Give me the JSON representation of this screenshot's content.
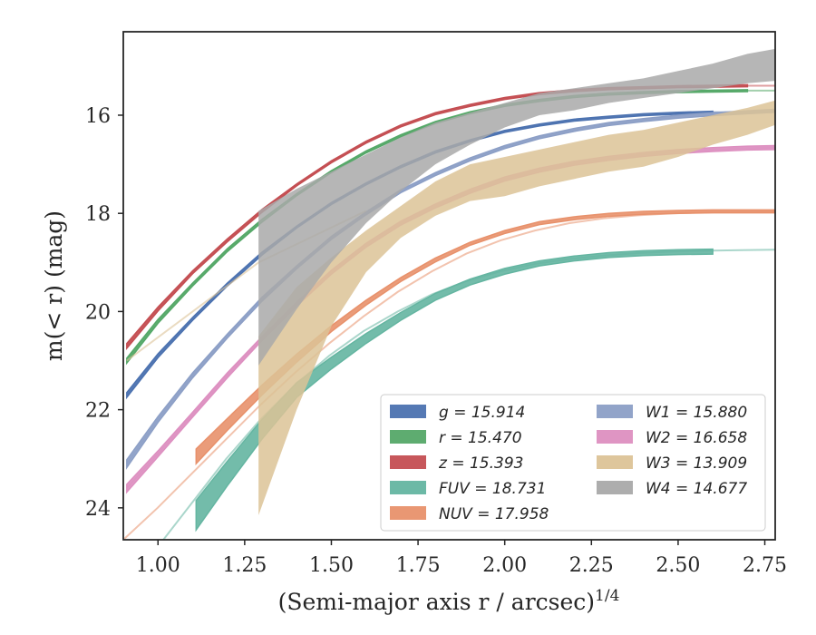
{
  "chart_data": {
    "type": "line",
    "title": "",
    "xlabel": "(Semi-major axis r / arcsec)",
    "xlabel_superscript": "1/4",
    "ylabel": "m(< r) (mag)",
    "xlim": [
      0.9,
      2.78
    ],
    "ylim": [
      24.65,
      14.3
    ],
    "y_inverted": true,
    "grid": false,
    "legend_position": "lower-right",
    "x_ticks": [
      "1.00",
      "1.25",
      "1.50",
      "1.75",
      "2.00",
      "2.25",
      "2.50",
      "2.75"
    ],
    "y_ticks": [
      "16",
      "18",
      "20",
      "22",
      "24"
    ],
    "series": [
      {
        "name": "g = 15.914",
        "color": "#4c72b0",
        "x": [
          0.91,
          1.0,
          1.1,
          1.2,
          1.3,
          1.4,
          1.5,
          1.6,
          1.7,
          1.8,
          1.9,
          2.0,
          2.1,
          2.2,
          2.3,
          2.4,
          2.5,
          2.6
        ],
        "y": [
          21.7,
          20.9,
          20.15,
          19.45,
          18.82,
          18.28,
          17.8,
          17.4,
          17.05,
          16.75,
          16.52,
          16.33,
          16.2,
          16.1,
          16.04,
          15.99,
          15.96,
          15.94
        ],
        "band": [
          0.05,
          0.04,
          0.03,
          0.03,
          0.03,
          0.02,
          0.02,
          0.02,
          0.02,
          0.02,
          0.02,
          0.02,
          0.02,
          0.02,
          0.02,
          0.02,
          0.02,
          0.02
        ],
        "model_to": 2.78
      },
      {
        "name": "r = 15.470",
        "color": "#55a868",
        "x": [
          0.91,
          1.0,
          1.1,
          1.2,
          1.3,
          1.4,
          1.5,
          1.6,
          1.7,
          1.8,
          1.9,
          2.0,
          2.1,
          2.2,
          2.3,
          2.4,
          2.5,
          2.6,
          2.7
        ],
        "y": [
          21.0,
          20.2,
          19.45,
          18.75,
          18.15,
          17.62,
          17.15,
          16.75,
          16.42,
          16.15,
          15.95,
          15.8,
          15.7,
          15.62,
          15.57,
          15.54,
          15.52,
          15.51,
          15.5
        ],
        "band": [
          0.05,
          0.04,
          0.03,
          0.03,
          0.03,
          0.02,
          0.02,
          0.02,
          0.02,
          0.02,
          0.02,
          0.02,
          0.02,
          0.02,
          0.02,
          0.02,
          0.02,
          0.02,
          0.02
        ],
        "model_to": 2.78
      },
      {
        "name": "z = 15.393",
        "color": "#c44e52",
        "x": [
          0.91,
          1.0,
          1.1,
          1.2,
          1.3,
          1.4,
          1.5,
          1.6,
          1.7,
          1.8,
          1.9,
          2.0,
          2.1,
          2.2,
          2.3,
          2.4,
          2.5,
          2.6,
          2.7
        ],
        "y": [
          20.7,
          19.95,
          19.2,
          18.55,
          17.95,
          17.42,
          16.95,
          16.55,
          16.22,
          15.97,
          15.8,
          15.66,
          15.56,
          15.5,
          15.46,
          15.44,
          15.42,
          15.41,
          15.4
        ],
        "band": [
          0.05,
          0.04,
          0.03,
          0.03,
          0.03,
          0.02,
          0.02,
          0.02,
          0.02,
          0.02,
          0.02,
          0.02,
          0.02,
          0.02,
          0.02,
          0.02,
          0.02,
          0.02,
          0.02
        ],
        "model_to": 2.78
      },
      {
        "name": "FUV = 18.731",
        "color": "#64b5a1",
        "x": [
          1.11,
          1.2,
          1.3,
          1.4,
          1.5,
          1.6,
          1.7,
          1.8,
          1.9,
          2.0,
          2.1,
          2.2,
          2.3,
          2.4,
          2.5,
          2.6
        ],
        "y": [
          24.15,
          23.3,
          22.4,
          21.6,
          21.05,
          20.55,
          20.1,
          19.7,
          19.4,
          19.18,
          19.02,
          18.92,
          18.85,
          18.81,
          18.79,
          18.78
        ],
        "band": [
          0.3,
          0.25,
          0.2,
          0.15,
          0.12,
          0.1,
          0.08,
          0.07,
          0.06,
          0.06,
          0.05,
          0.05,
          0.05,
          0.05,
          0.05,
          0.05
        ],
        "model_to": 2.78,
        "model_from": 0.9,
        "model_y": [
          25.6,
          24.8,
          23.9,
          23.0,
          22.2,
          21.5,
          20.9,
          20.4,
          20.0,
          19.65,
          19.38,
          19.18,
          19.03,
          18.93,
          18.86,
          18.81,
          18.78,
          18.76,
          18.75,
          18.74
        ]
      },
      {
        "name": "NUV = 17.958",
        "color": "#e8916b",
        "x": [
          1.11,
          1.2,
          1.3,
          1.4,
          1.5,
          1.6,
          1.7,
          1.8,
          1.9,
          2.0,
          2.1,
          2.2,
          2.3,
          2.4,
          2.5,
          2.6,
          2.7,
          2.78
        ],
        "y": [
          22.95,
          22.3,
          21.6,
          20.95,
          20.35,
          19.82,
          19.35,
          18.95,
          18.62,
          18.38,
          18.2,
          18.1,
          18.03,
          17.99,
          17.97,
          17.96,
          17.96,
          17.96
        ],
        "band": [
          0.15,
          0.12,
          0.1,
          0.08,
          0.06,
          0.05,
          0.04,
          0.04,
          0.03,
          0.03,
          0.03,
          0.03,
          0.03,
          0.03,
          0.03,
          0.03,
          0.03,
          0.03
        ],
        "model_to": 2.78,
        "model_from": 0.9,
        "model_y": [
          24.65,
          24.0,
          23.3,
          22.6,
          21.9,
          21.25,
          20.65,
          20.1,
          19.6,
          19.18,
          18.82,
          18.55,
          18.35,
          18.2,
          18.1,
          18.04,
          18.0,
          17.98,
          17.97,
          17.96
        ]
      },
      {
        "name": "W1 = 15.880",
        "color": "#8c9fc6",
        "x": [
          0.91,
          1.0,
          1.1,
          1.2,
          1.3,
          1.4,
          1.5,
          1.6,
          1.7,
          1.8,
          1.9,
          2.0,
          2.1,
          2.2,
          2.3,
          2.4,
          2.5,
          2.6,
          2.7,
          2.78
        ],
        "y": [
          23.1,
          22.2,
          21.3,
          20.5,
          19.75,
          19.1,
          18.5,
          18.0,
          17.55,
          17.2,
          16.9,
          16.65,
          16.45,
          16.3,
          16.18,
          16.1,
          16.03,
          15.98,
          15.94,
          15.91
        ],
        "band": [
          0.08,
          0.06,
          0.05,
          0.04,
          0.04,
          0.03,
          0.03,
          0.03,
          0.03,
          0.03,
          0.03,
          0.03,
          0.03,
          0.03,
          0.03,
          0.03,
          0.03,
          0.03,
          0.03,
          0.03
        ],
        "model_to": 2.78
      },
      {
        "name": "W2 = 16.658",
        "color": "#dd8fc0",
        "x": [
          0.91,
          1.0,
          1.1,
          1.2,
          1.3,
          1.4,
          1.5,
          1.6,
          1.7,
          1.8,
          1.9,
          2.0,
          2.1,
          2.2,
          2.3,
          2.4,
          2.5,
          2.6,
          2.7,
          2.78
        ],
        "y": [
          23.6,
          22.9,
          22.1,
          21.3,
          20.55,
          19.85,
          19.2,
          18.65,
          18.2,
          17.85,
          17.55,
          17.3,
          17.12,
          16.98,
          16.88,
          16.8,
          16.74,
          16.7,
          16.67,
          16.66
        ],
        "band": [
          0.08,
          0.06,
          0.05,
          0.05,
          0.04,
          0.04,
          0.04,
          0.04,
          0.04,
          0.04,
          0.04,
          0.04,
          0.04,
          0.04,
          0.04,
          0.04,
          0.04,
          0.04,
          0.04,
          0.04
        ],
        "model_to": 2.78
      },
      {
        "name": "W3 = 13.909",
        "color": "#dcc397",
        "x": [
          1.29,
          1.4,
          1.5,
          1.6,
          1.7,
          1.8,
          1.9,
          2.0,
          2.1,
          2.2,
          2.3,
          2.4,
          2.5,
          2.6,
          2.7,
          2.78
        ],
        "y_low": [
          24.15,
          22.0,
          20.3,
          19.2,
          18.5,
          18.05,
          17.75,
          17.65,
          17.45,
          17.3,
          17.15,
          17.05,
          16.85,
          16.6,
          16.4,
          16.2
        ],
        "y_high": [
          20.5,
          19.5,
          18.9,
          18.35,
          17.85,
          17.35,
          17.0,
          16.85,
          16.7,
          16.55,
          16.4,
          16.3,
          16.15,
          16.0,
          15.85,
          15.7
        ],
        "model_from": 0.91,
        "model_y0": 21.0
      },
      {
        "name": "W4 = 14.677",
        "color": "#a9a9a9",
        "x": [
          1.29,
          1.4,
          1.5,
          1.6,
          1.7,
          1.8,
          1.9,
          2.0,
          2.1,
          2.2,
          2.3,
          2.4,
          2.5,
          2.6,
          2.7,
          2.78
        ],
        "y_low": [
          21.1,
          19.95,
          19.0,
          18.2,
          17.55,
          17.0,
          16.6,
          16.25,
          16.0,
          15.9,
          15.75,
          15.65,
          15.55,
          15.45,
          15.35,
          15.3
        ],
        "y_high": [
          17.95,
          17.5,
          17.15,
          16.8,
          16.45,
          16.15,
          15.95,
          15.75,
          15.55,
          15.45,
          15.35,
          15.25,
          15.1,
          14.95,
          14.75,
          14.65
        ]
      }
    ]
  },
  "axes": {
    "xlabel": "(Semi-major axis r / arcsec)",
    "xlabel_sup": "1/4",
    "ylabel": "m(< r) (mag)"
  }
}
